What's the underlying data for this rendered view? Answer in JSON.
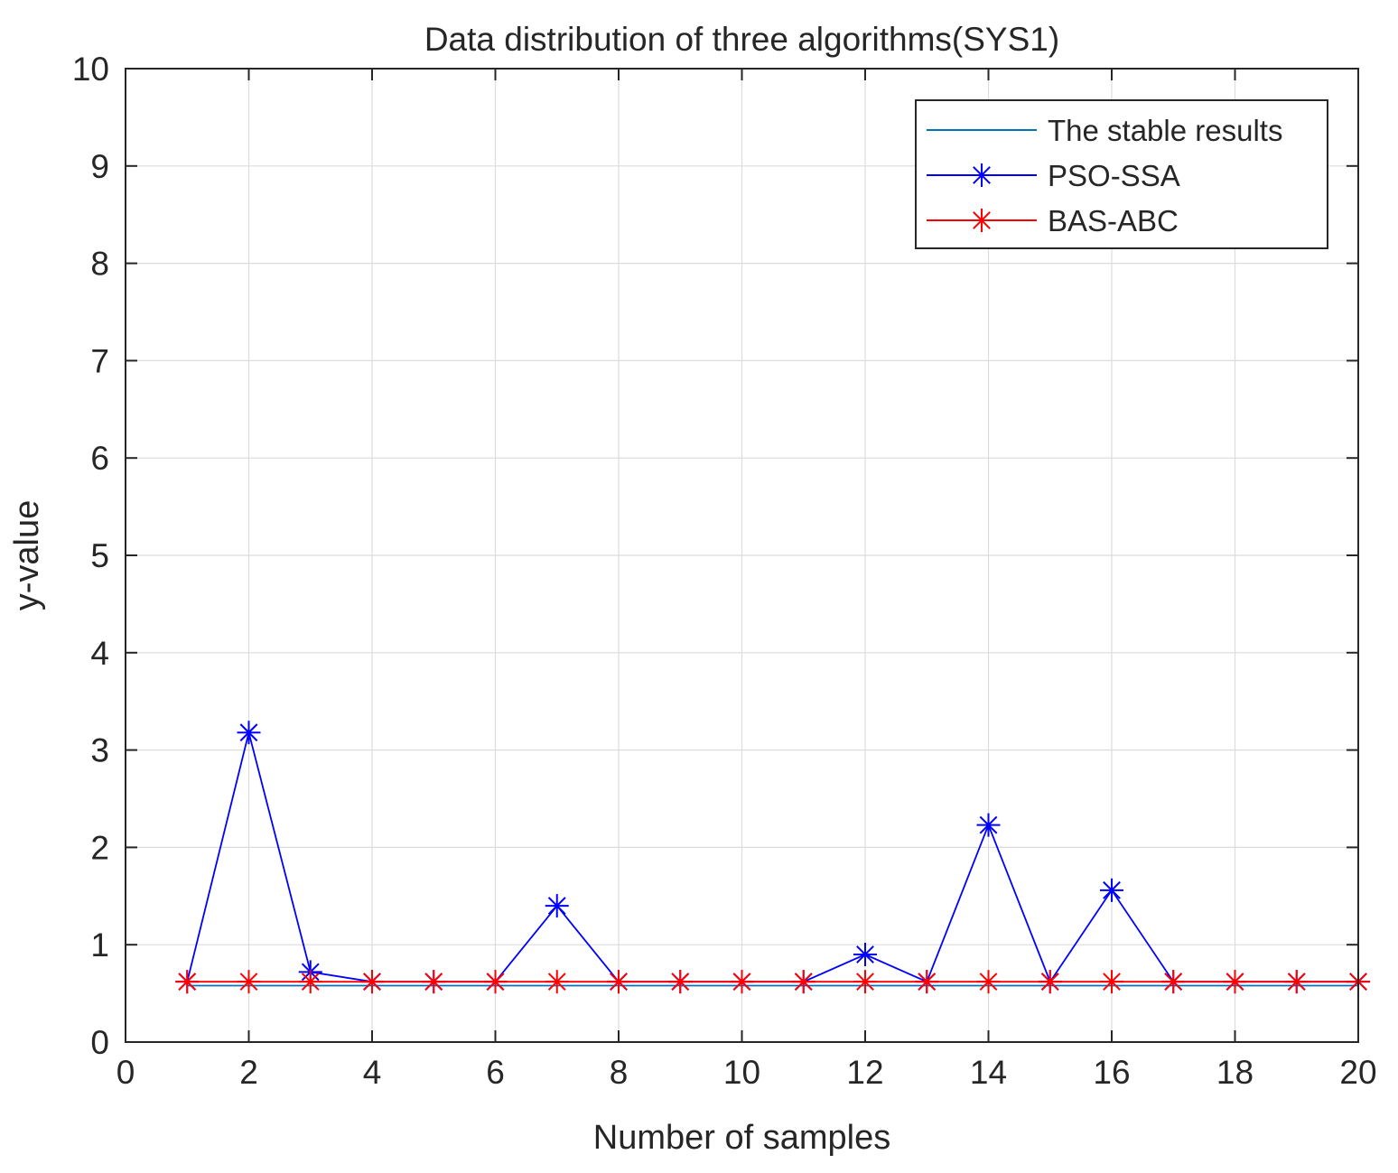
{
  "chart_data": {
    "type": "line",
    "title": "Data distribution of three algorithms(SYS1)",
    "xlabel": "Number of samples",
    "ylabel": "y-value",
    "xlim": [
      0,
      20
    ],
    "ylim": [
      0,
      10
    ],
    "xticks": [
      0,
      2,
      4,
      6,
      8,
      10,
      12,
      14,
      16,
      18,
      20
    ],
    "yticks": [
      0,
      1,
      2,
      3,
      4,
      5,
      6,
      7,
      8,
      9,
      10
    ],
    "grid": true,
    "legend_position": "top-right",
    "x": [
      1,
      2,
      3,
      4,
      5,
      6,
      7,
      8,
      9,
      10,
      11,
      12,
      13,
      14,
      15,
      16,
      17,
      18,
      19,
      20
    ],
    "series": [
      {
        "name": "The stable results",
        "color": "#0072bd",
        "marker": "none",
        "values": [
          0.58,
          0.58,
          0.58,
          0.58,
          0.58,
          0.58,
          0.58,
          0.58,
          0.58,
          0.58,
          0.58,
          0.58,
          0.58,
          0.58,
          0.58,
          0.58,
          0.58,
          0.58,
          0.58,
          0.58
        ]
      },
      {
        "name": "PSO-SSA",
        "color": "#0000ff",
        "marker": "asterisk",
        "values": [
          0.62,
          3.18,
          0.72,
          0.62,
          0.62,
          0.62,
          1.4,
          0.62,
          0.62,
          0.62,
          0.62,
          0.9,
          0.62,
          2.23,
          0.62,
          1.56,
          0.62,
          0.62,
          0.62,
          0.62
        ]
      },
      {
        "name": "BAS-ABC",
        "color": "#ff0000",
        "marker": "asterisk",
        "values": [
          0.62,
          0.62,
          0.62,
          0.62,
          0.62,
          0.62,
          0.62,
          0.62,
          0.62,
          0.62,
          0.62,
          0.62,
          0.62,
          0.62,
          0.62,
          0.62,
          0.62,
          0.62,
          0.62,
          0.62
        ]
      }
    ]
  }
}
